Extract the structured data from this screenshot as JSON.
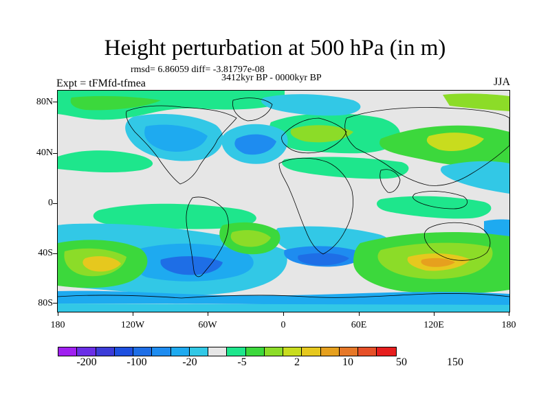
{
  "title": "Height perturbation at 500 hPa (in m)",
  "stats": "rmsd= 6.86059 diff= -3.81797e-08",
  "period": "3412kyr BP - 0000kyr BP",
  "experiment": "Expt = tFMfd-tfmea",
  "season": "JJA",
  "map": {
    "background_color": "#e6e6e6",
    "lat_labels": [
      "80N",
      "40N",
      "0",
      "40S",
      "80S"
    ],
    "lon_labels": [
      "180",
      "120W",
      "60W",
      "0",
      "60E",
      "120E",
      "180"
    ]
  },
  "colorbar": {
    "colors": [
      "#a020f0",
      "#6a2ee6",
      "#3c3cd8",
      "#1e50e0",
      "#1e6ee6",
      "#1e8cf0",
      "#1eaaf0",
      "#32c8e6",
      "#e6e6e6",
      "#1ee68c",
      "#3cd83c",
      "#8cdc28",
      "#c8dc1e",
      "#e6c81e",
      "#e6a01e",
      "#e67828",
      "#e65028",
      "#e61e1e"
    ],
    "labels": [
      "-200",
      "-100",
      "-20",
      "-5",
      "2",
      "10",
      "50",
      "150"
    ]
  }
}
